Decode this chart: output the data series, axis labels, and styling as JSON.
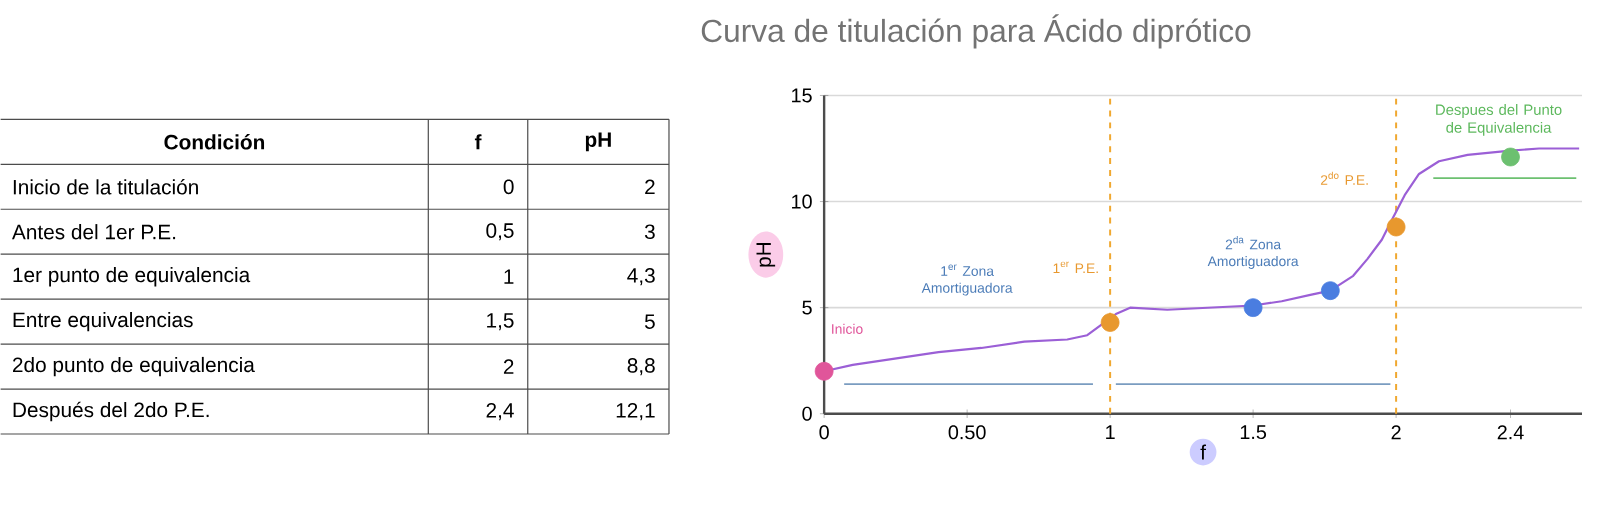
{
  "chart_data": [
    {
      "type": "other",
      "title": "Condición",
      "categories": [
        "Inicio de la titulación",
        "Antes del 1er P.E.",
        "1er punto de equivalencia",
        "Entre equivalencias",
        "2do punto de equivalencia",
        "Después del 2do P.E."
      ],
      "series": [
        {
          "name": "f",
          "values": [
            0,
            0.5,
            1,
            1.5,
            2,
            2.4
          ],
          "value_labels": [
            "0",
            "0,5",
            "1",
            "1,5",
            "2",
            "2,4"
          ]
        },
        {
          "name": "pH",
          "values": [
            2,
            3,
            4.3,
            5,
            8.8,
            12.1
          ],
          "value_labels": [
            "2",
            "3",
            "4,3",
            "5",
            "8,8",
            "12,1"
          ]
        }
      ]
    },
    {
      "type": "line",
      "title": "Curva de titulación para Ácido diprótico",
      "xlabel": "f",
      "ylabel": "pH",
      "xlim": [
        0,
        2.65
      ],
      "ylim": [
        0,
        15
      ],
      "xticks": [
        0,
        {
          "value": 0.5,
          "label": "0.50"
        },
        1,
        1.5,
        2,
        2.4
      ],
      "yticks": [
        0,
        5,
        10,
        15
      ],
      "grid": "y",
      "series": [
        {
          "type": "line",
          "color": "#9b5fd6",
          "marker": "none",
          "x": [
            0,
            0.1,
            0.25,
            0.4,
            0.55,
            0.7,
            0.85,
            0.92,
            0.97,
            1.02,
            1.07,
            1.2,
            1.35,
            1.5,
            1.6,
            1.7,
            1.77,
            1.85,
            1.9,
            1.95,
            1.98,
            2.03,
            2.08,
            2.15,
            2.25,
            2.4,
            2.5,
            2.64
          ],
          "values": [
            2,
            2.3,
            2.6,
            2.9,
            3.1,
            3.4,
            3.5,
            3.7,
            4.2,
            4.7,
            5,
            4.9,
            5,
            5.1,
            5.3,
            5.6,
            5.8,
            6.5,
            7.3,
            8.2,
            9,
            10.3,
            11.3,
            11.9,
            12.2,
            12.4,
            12.5,
            12.5
          ]
        },
        {
          "type": "line",
          "color": "#7a9cc0",
          "marker": "none",
          "x": [
            0.07,
            0.94
          ],
          "values": [
            1.4,
            1.4
          ]
        },
        {
          "type": "line",
          "color": "#7a9cc0",
          "marker": "none",
          "x": [
            1.02,
            1.98
          ],
          "values": [
            1.4,
            1.4
          ]
        },
        {
          "type": "line",
          "color": "#6cc070",
          "marker": "none",
          "x": [
            2.13,
            2.63
          ],
          "values": [
            11.1,
            11.1
          ]
        },
        {
          "type": "scatter",
          "marker": "circle",
          "x": [
            0,
            1,
            1.5,
            1.77,
            2,
            2.4
          ],
          "values": [
            2,
            4.3,
            5,
            5.8,
            8.8,
            12.1
          ],
          "colors": [
            "#e0559a",
            "#e8982e",
            "#4a7de0",
            "#4a7de0",
            "#e8982e",
            "#6cc070"
          ]
        }
      ],
      "ref_lines": [
        {
          "axis": "x",
          "value": 1,
          "color": "#f0a830",
          "line_style": "dashed"
        },
        {
          "axis": "x",
          "value": 2,
          "color": "#f0a830",
          "line_style": "dashed"
        }
      ],
      "annotations": [
        "Inicio",
        "1$^{er}$ Zona Amortiguadora",
        "1$^{er}$ P.E.",
        "2$^{da}$ Zona Amortiguadora",
        "2$^{do}$ P.E.",
        {
          "text": "Despues del Punto de Equivalencia",
          "x": 2.4,
          "y": 12.1
        }
      ]
    }
  ]
}
